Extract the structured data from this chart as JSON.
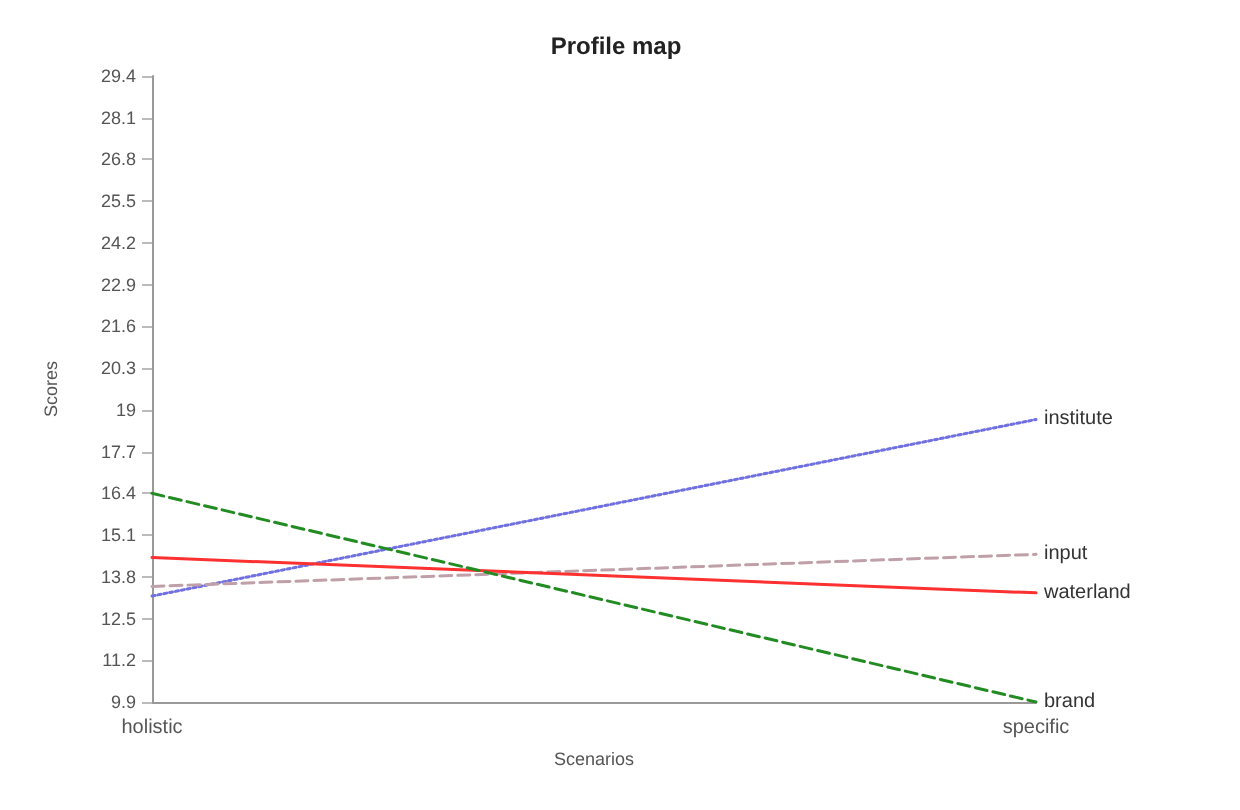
{
  "chart_data": {
    "type": "line",
    "title": "Profile map",
    "xlabel": "Scenarios",
    "ylabel": "Scores",
    "categories": [
      "holistic",
      "specific"
    ],
    "series": [
      {
        "name": "institute",
        "color": "#7070e0",
        "values": [
          13.2,
          18.7
        ],
        "line_style": "dotted"
      },
      {
        "name": "input",
        "color": "#c0a0a8",
        "values": [
          13.5,
          14.5
        ],
        "line_style": "dashed"
      },
      {
        "name": "waterland",
        "color": "#ff3030",
        "values": [
          14.4,
          13.3
        ],
        "line_style": "solid"
      },
      {
        "name": "brand",
        "color": "#228b22",
        "values": [
          16.4,
          9.9
        ],
        "line_style": "dashed"
      }
    ],
    "ylim": [
      9.9,
      29.4
    ],
    "yticks": [
      9.9,
      11.2,
      12.5,
      13.8,
      15.1,
      16.4,
      17.7,
      19,
      20.3,
      21.6,
      22.9,
      24.2,
      25.5,
      26.8,
      28.1,
      29.4
    ],
    "grid": false,
    "legend": false
  }
}
